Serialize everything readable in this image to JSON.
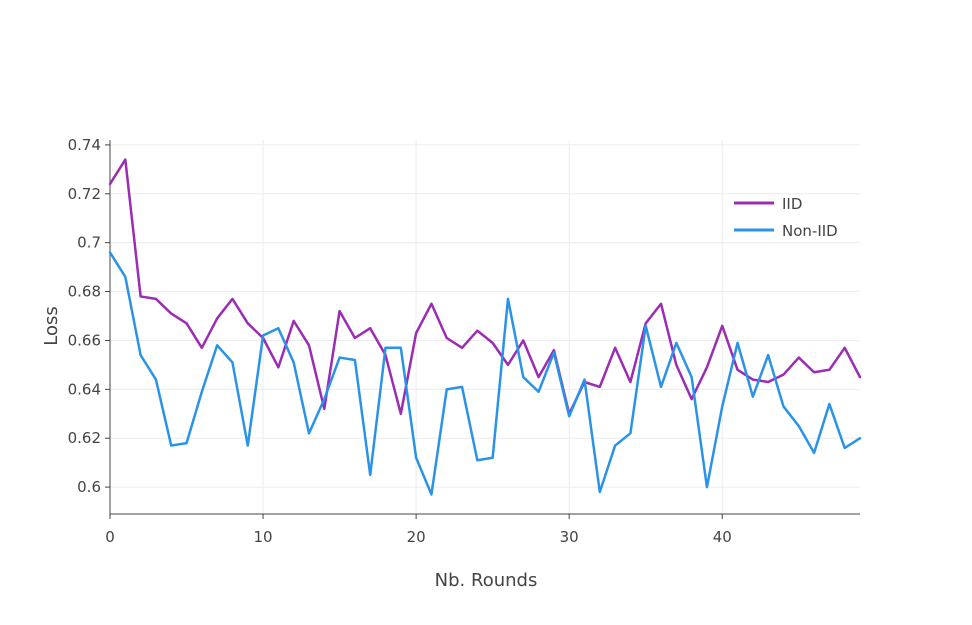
{
  "chart_data": {
    "type": "line",
    "title": "",
    "xlabel": "Nb. Rounds",
    "ylabel": "Loss",
    "xlim": [
      0,
      49
    ],
    "ylim": [
      0.589,
      0.742
    ],
    "x_ticks": [
      0,
      10,
      20,
      30,
      40
    ],
    "y_ticks": [
      0.6,
      0.62,
      0.64,
      0.66,
      0.68,
      0.7,
      0.72,
      0.74
    ],
    "y_tick_labels": [
      "0.6",
      "0.62",
      "0.64",
      "0.66",
      "0.68",
      "0.7",
      "0.72",
      "0.74"
    ],
    "grid": true,
    "legend_position": "top-right",
    "x": [
      0,
      1,
      2,
      3,
      4,
      5,
      6,
      7,
      8,
      9,
      10,
      11,
      12,
      13,
      14,
      15,
      16,
      17,
      18,
      19,
      20,
      21,
      22,
      23,
      24,
      25,
      26,
      27,
      28,
      29,
      30,
      31,
      32,
      33,
      34,
      35,
      36,
      37,
      38,
      39,
      40,
      41,
      42,
      43,
      44,
      45,
      46,
      47,
      48,
      49
    ],
    "series": [
      {
        "name": "IID",
        "color": "#9b2cb3",
        "values": [
          0.724,
          0.734,
          0.678,
          0.677,
          0.671,
          0.667,
          0.657,
          0.669,
          0.677,
          0.667,
          0.661,
          0.649,
          0.668,
          0.658,
          0.632,
          0.672,
          0.661,
          0.665,
          0.654,
          0.63,
          0.663,
          0.675,
          0.661,
          0.657,
          0.664,
          0.659,
          0.65,
          0.66,
          0.645,
          0.656,
          0.63,
          0.643,
          0.641,
          0.657,
          0.643,
          0.667,
          0.675,
          0.65,
          0.636,
          0.649,
          0.666,
          0.648,
          0.644,
          0.643,
          0.646,
          0.653,
          0.647,
          0.648,
          0.657,
          0.645
        ]
      },
      {
        "name": "Non-IID",
        "color": "#2a93e8",
        "values": [
          0.696,
          0.686,
          0.654,
          0.644,
          0.617,
          0.618,
          0.639,
          0.658,
          0.651,
          0.617,
          0.662,
          0.665,
          0.651,
          0.622,
          0.636,
          0.653,
          0.652,
          0.605,
          0.657,
          0.657,
          0.612,
          0.597,
          0.64,
          0.641,
          0.611,
          0.612,
          0.677,
          0.645,
          0.639,
          0.655,
          0.629,
          0.644,
          0.598,
          0.617,
          0.622,
          0.666,
          0.641,
          0.659,
          0.645,
          0.6,
          0.633,
          0.659,
          0.637,
          0.654,
          0.633,
          0.625,
          0.614,
          0.634,
          0.616,
          0.62
        ]
      }
    ]
  }
}
